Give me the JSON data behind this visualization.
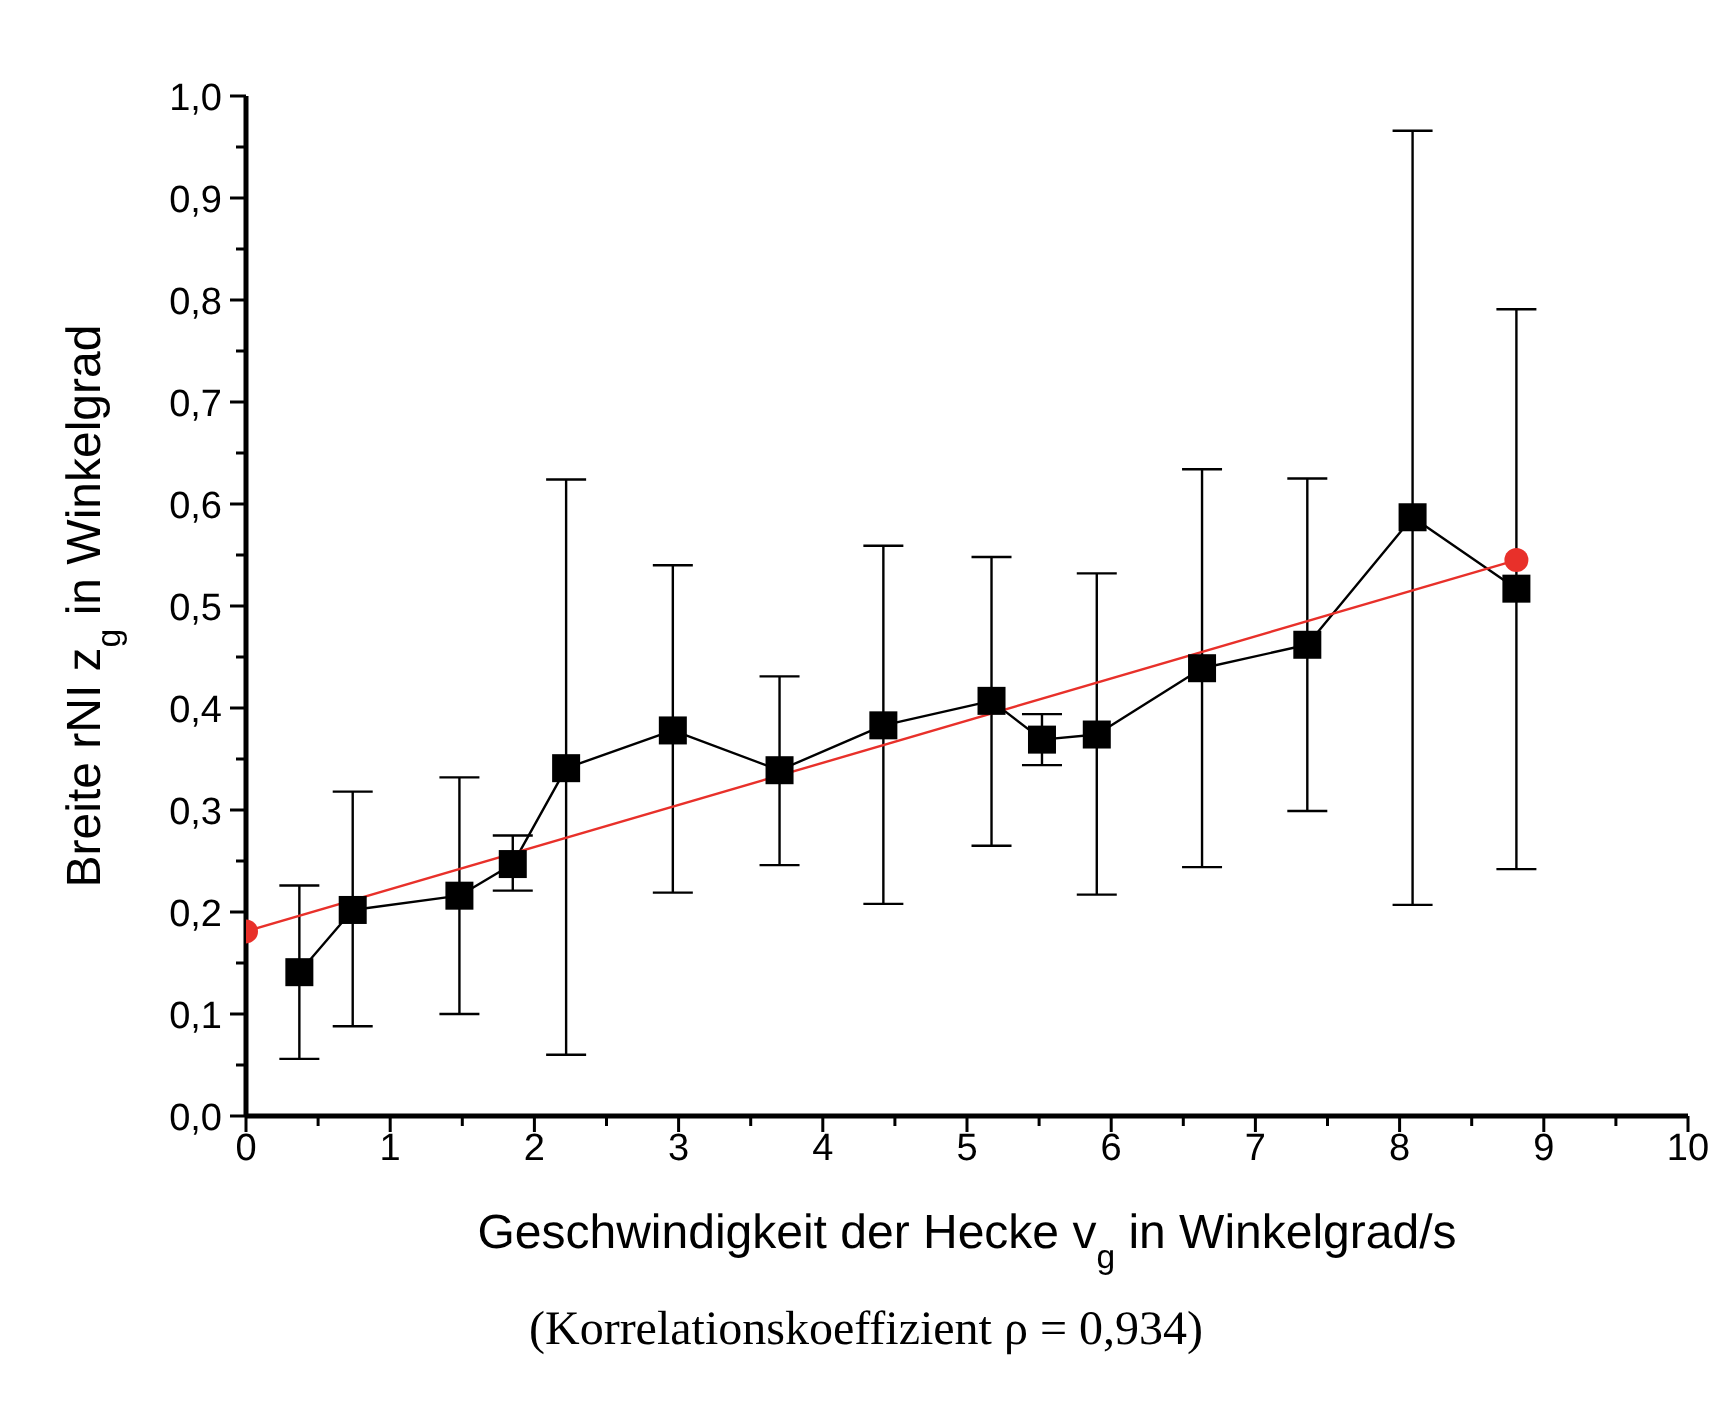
{
  "chart_data": {
    "type": "line",
    "xlabel": "Geschwindigkeit der Hecke v$_{g}$ in Winkelgrad/s",
    "ylabel": "Breite rNI z$_{g}$ in Winkelgrad",
    "annotations": [
      "(Korrelationskoeffizient ρ = 0,934)"
    ],
    "xlim": [
      0,
      10
    ],
    "ylim": [
      0,
      1
    ],
    "xticks": [
      0,
      {
        "value": 0.5,
        "label": null
      },
      1,
      {
        "value": 1.5,
        "label": null
      },
      2,
      {
        "value": 2.5,
        "label": null
      },
      3,
      {
        "value": 3.5,
        "label": null
      },
      4,
      {
        "value": 4.5,
        "label": null
      },
      5,
      {
        "value": 5.5,
        "label": null
      },
      6,
      {
        "value": 6.5,
        "label": null
      },
      7,
      {
        "value": 7.5,
        "label": null
      },
      8,
      {
        "value": 8.5,
        "label": null
      },
      9,
      {
        "value": 9.5,
        "label": null
      },
      10
    ],
    "yticks": [
      {
        "value": 0,
        "label": "0,0"
      },
      {
        "value": 0.05,
        "label": null
      },
      {
        "value": 0.1,
        "label": "0,1"
      },
      {
        "value": 0.15,
        "label": null
      },
      {
        "value": 0.2,
        "label": "0,2"
      },
      {
        "value": 0.25,
        "label": null
      },
      {
        "value": 0.3,
        "label": "0,3"
      },
      {
        "value": 0.35,
        "label": null
      },
      {
        "value": 0.4,
        "label": "0,4"
      },
      {
        "value": 0.45,
        "label": null
      },
      {
        "value": 0.5,
        "label": "0,5"
      },
      {
        "value": 0.55,
        "label": null
      },
      {
        "value": 0.6,
        "label": "0,6"
      },
      {
        "value": 0.65,
        "label": null
      },
      {
        "value": 0.7,
        "label": "0,7"
      },
      {
        "value": 0.75,
        "label": null
      },
      {
        "value": 0.8,
        "label": "0,8"
      },
      {
        "value": 0.85,
        "label": null
      },
      {
        "value": 0.9,
        "label": "0,9"
      },
      {
        "value": 0.95,
        "label": null
      },
      {
        "value": 1,
        "label": "1,0"
      }
    ],
    "marker": "square",
    "line_style": "solid",
    "series": [
      {
        "color": "#000000",
        "x": [
          0.37,
          0.74,
          1.48,
          1.85,
          2.22,
          2.96,
          3.7,
          4.42,
          5.17,
          5.52,
          5.9,
          6.63,
          7.36,
          8.09,
          8.81
        ],
        "values": [
          0.141,
          0.202,
          0.216,
          0.247,
          0.341,
          0.378,
          0.339,
          0.383,
          0.407,
          0.369,
          0.374,
          0.439,
          0.462,
          0.587,
          0.517
        ],
        "errors": [
          [
            0.056,
            0.226
          ],
          [
            0.088,
            0.318
          ],
          [
            0.1,
            0.332
          ],
          [
            0.221,
            0.275
          ],
          [
            0.06,
            0.624
          ],
          [
            0.219,
            0.54
          ],
          [
            0.246,
            0.431
          ],
          [
            0.208,
            0.559
          ],
          [
            0.265,
            0.548
          ],
          [
            0.344,
            0.394
          ],
          [
            0.217,
            0.532
          ],
          [
            0.244,
            0.634
          ],
          [
            0.299,
            0.625
          ],
          [
            0.207,
            0.966
          ],
          [
            0.242,
            0.791
          ]
        ]
      },
      {
        "type": "line",
        "color": "#e8302a",
        "marker": "circle",
        "x": [
          0,
          8.81
        ],
        "values": [
          0.181,
          0.545
        ]
      }
    ]
  }
}
